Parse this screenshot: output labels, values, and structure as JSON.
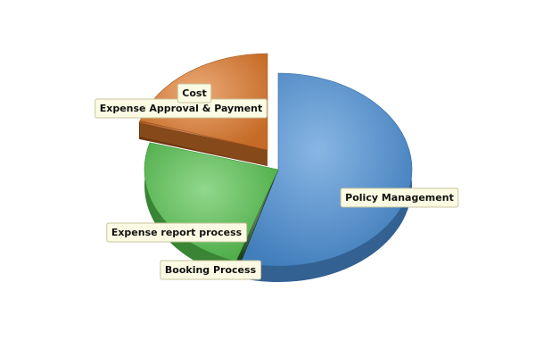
{
  "chart_data": {
    "type": "pie",
    "variant": "3d-exploded",
    "slices": [
      {
        "name": "Policy Management",
        "value": 54.5,
        "color": "#4a8fd6",
        "exploded": false
      },
      {
        "name": "Booking Process",
        "value": 0.6,
        "color": "#1f4a1f",
        "exploded": false
      },
      {
        "name": "Expense report process",
        "value": 24.4,
        "color": "#55c24e",
        "exploded": false
      },
      {
        "name": "Expense Approval & Payment",
        "value": 0.4,
        "color": "#b85a18",
        "exploded": true
      },
      {
        "name": "Cost",
        "value": 20.1,
        "color": "#e07a2c",
        "exploded": true
      }
    ],
    "legend": "none"
  }
}
